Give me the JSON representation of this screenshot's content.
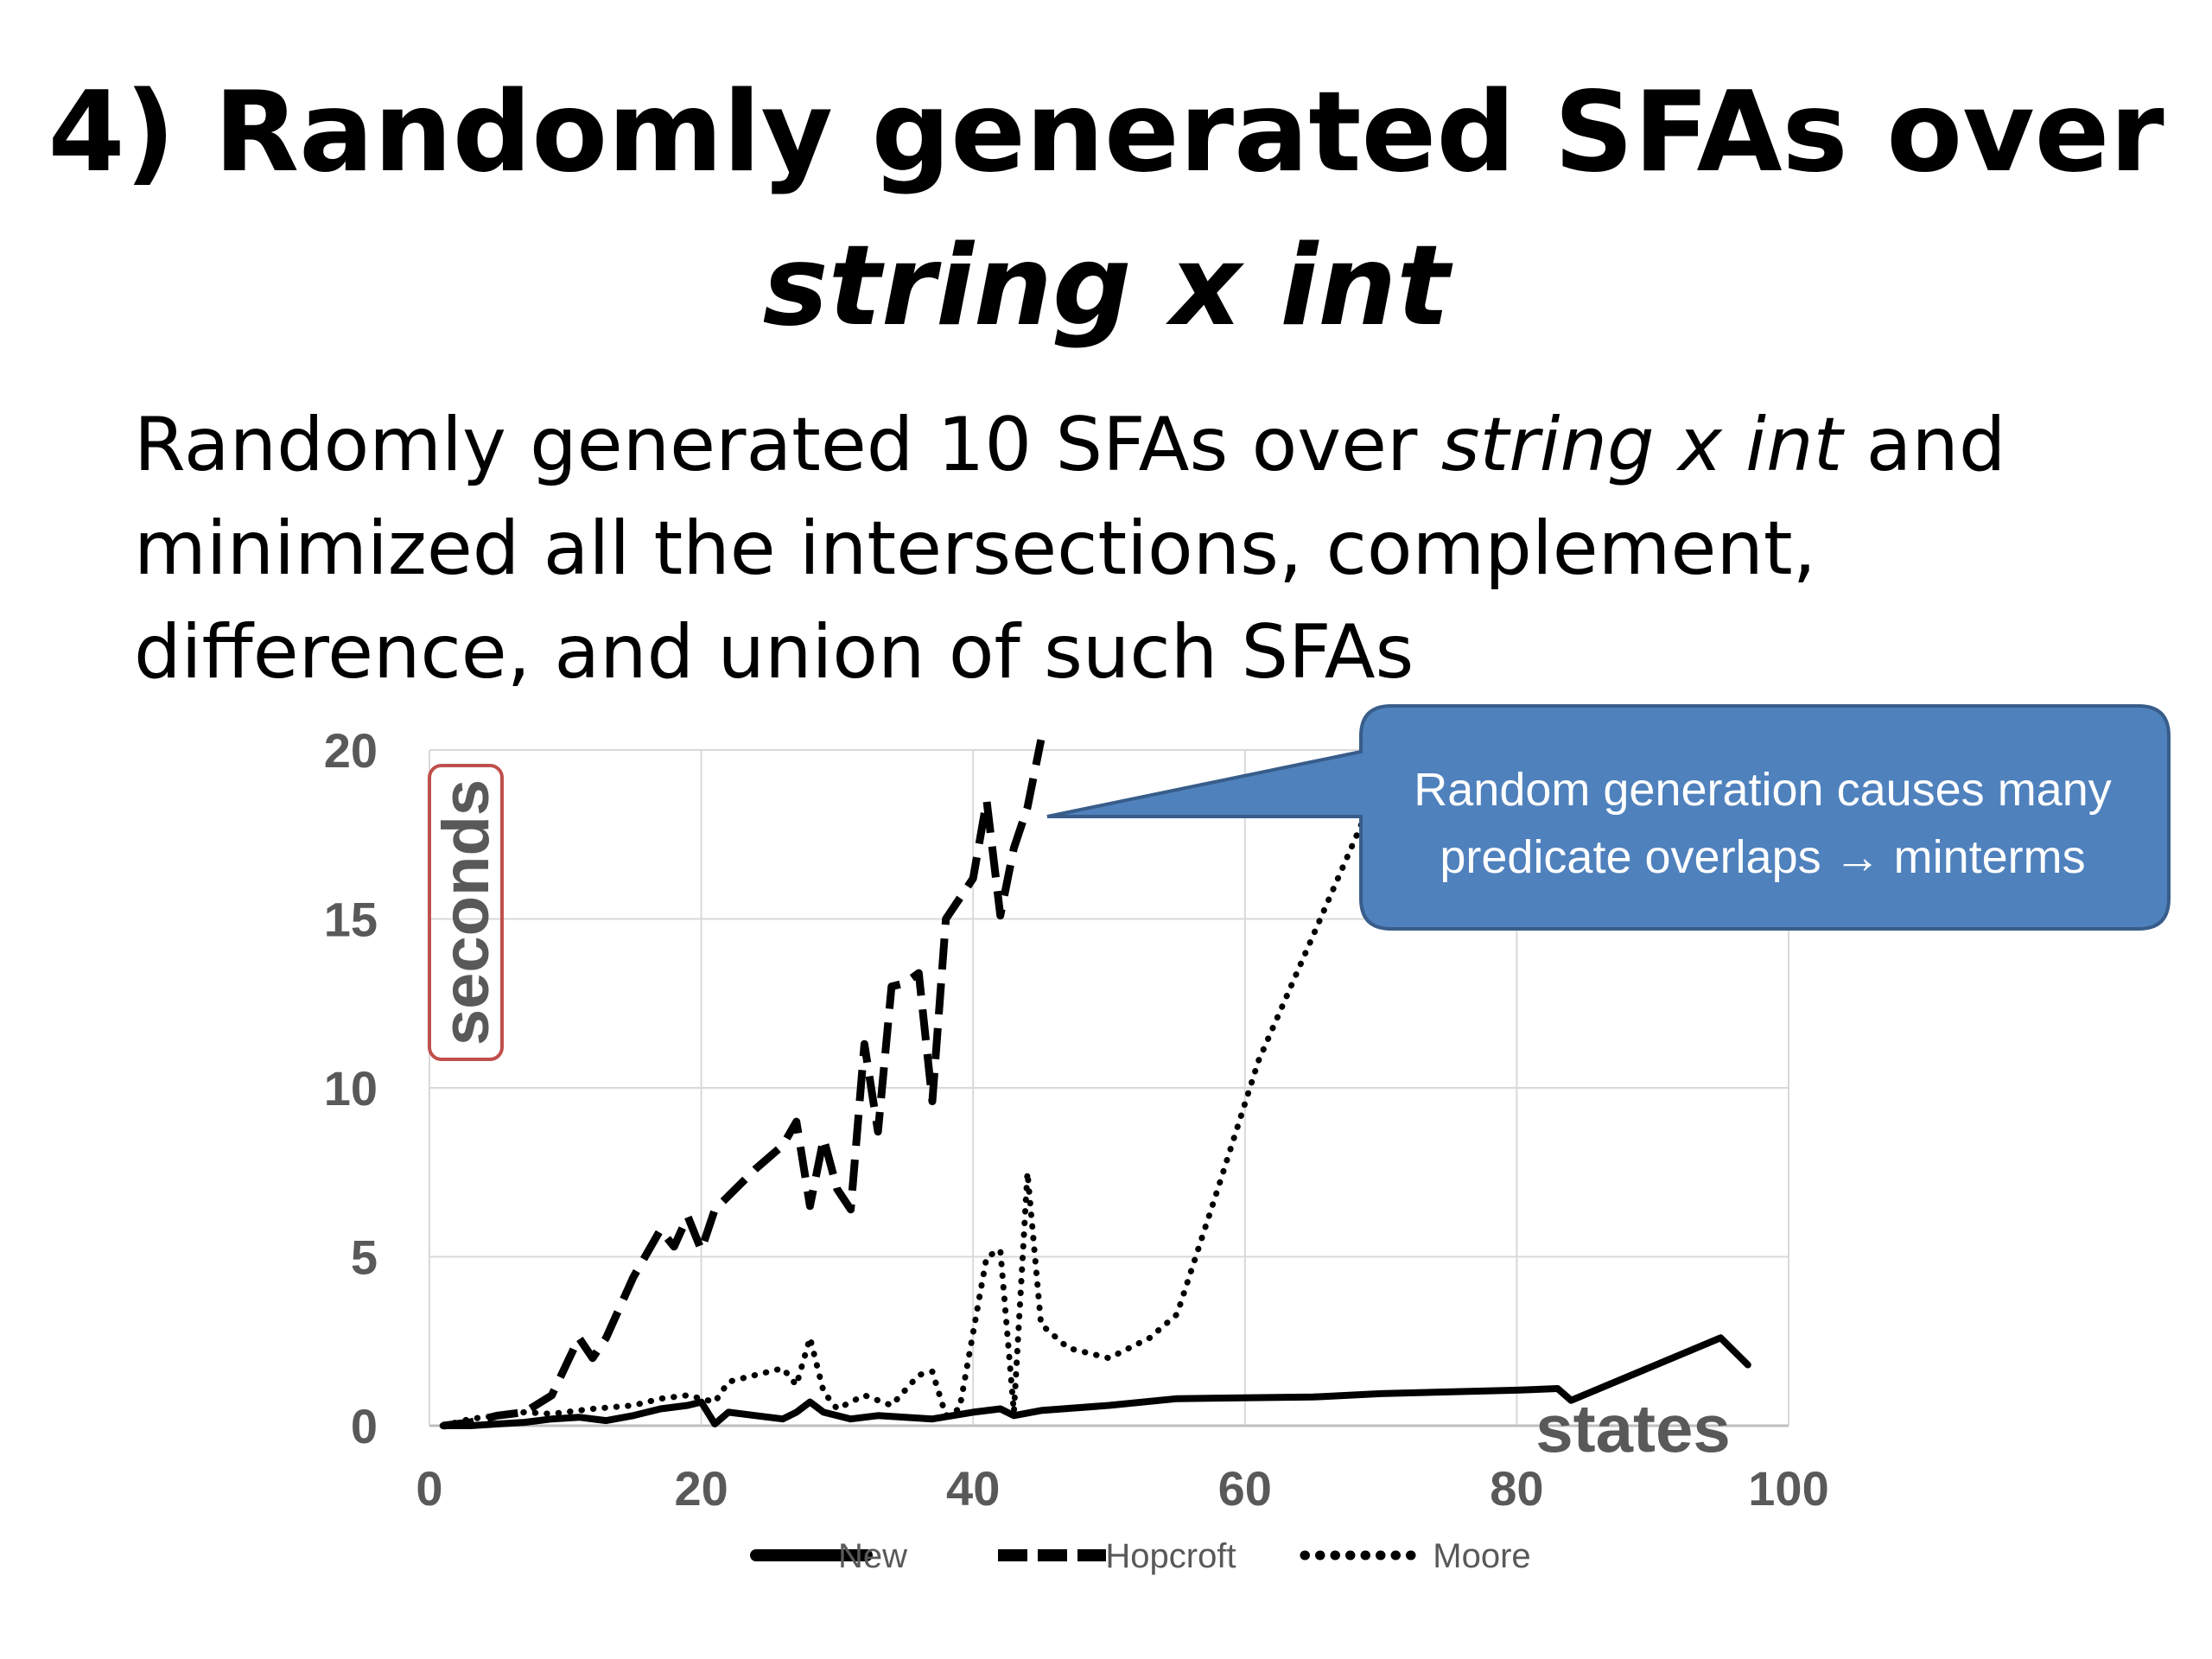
{
  "slide": {
    "title_line1": "4) Randomly generated SFAs over",
    "title_line2": "string x int",
    "body_line1_a": "Randomly generated 10 SFAs over ",
    "body_line1_b": "string x int",
    "body_line1_c": " and",
    "body_line2": "minimized all the intersections, complement,",
    "body_line3": "difference, and union of such SFAs",
    "callout_line1": "Random generation causes many",
    "callout_line2": "predicate overlaps → minterms"
  },
  "colors": {
    "callout_fill": "#4f81bd",
    "callout_stroke": "#385d8a",
    "ylabel_box": "#c0504d",
    "axis_text": "#595959",
    "grid": "#d9d9d9",
    "series": "#000000"
  },
  "chart_data": {
    "type": "line",
    "xlabel": "states",
    "ylabel": "seconds",
    "xlim": [
      0,
      100
    ],
    "ylim": [
      0,
      20
    ],
    "xticks": [
      0,
      20,
      40,
      60,
      80,
      100
    ],
    "yticks": [
      0,
      5,
      10,
      15,
      20
    ],
    "grid": true,
    "legend_position": "bottom",
    "series": [
      {
        "name": "New",
        "style": "solid",
        "points": [
          [
            1,
            0
          ],
          [
            3,
            0
          ],
          [
            5,
            0.05
          ],
          [
            7,
            0.1
          ],
          [
            9,
            0.2
          ],
          [
            11,
            0.25
          ],
          [
            13,
            0.15
          ],
          [
            15,
            0.3
          ],
          [
            17,
            0.5
          ],
          [
            19,
            0.6
          ],
          [
            20,
            0.7
          ],
          [
            21,
            0.05
          ],
          [
            22,
            0.4
          ],
          [
            24,
            0.3
          ],
          [
            26,
            0.2
          ],
          [
            27,
            0.4
          ],
          [
            28,
            0.7
          ],
          [
            29,
            0.4
          ],
          [
            31,
            0.2
          ],
          [
            33,
            0.3
          ],
          [
            35,
            0.25
          ],
          [
            37,
            0.2
          ],
          [
            40,
            0.4
          ],
          [
            42,
            0.5
          ],
          [
            43,
            0.3
          ],
          [
            45,
            0.45
          ],
          [
            50,
            0.6
          ],
          [
            55,
            0.8
          ],
          [
            65,
            0.85
          ],
          [
            70,
            0.95
          ],
          [
            80,
            1.05
          ],
          [
            83,
            1.1
          ],
          [
            84,
            0.75
          ],
          [
            95,
            2.6
          ],
          [
            97,
            1.8
          ]
        ]
      },
      {
        "name": "Hopcroft",
        "style": "dashed",
        "points": [
          [
            1,
            0
          ],
          [
            3,
            0.1
          ],
          [
            5,
            0.3
          ],
          [
            7,
            0.4
          ],
          [
            9,
            0.9
          ],
          [
            11,
            2.6
          ],
          [
            12,
            2.0
          ],
          [
            13,
            2.6
          ],
          [
            15,
            4.4
          ],
          [
            17,
            5.8
          ],
          [
            18,
            5.3
          ],
          [
            19,
            6.2
          ],
          [
            20,
            5.2
          ],
          [
            21,
            6.4
          ],
          [
            22,
            6.8
          ],
          [
            24,
            7.6
          ],
          [
            26,
            8.3
          ],
          [
            27,
            9.0
          ],
          [
            28,
            6.5
          ],
          [
            29,
            8.5
          ],
          [
            30,
            7.0
          ],
          [
            31,
            6.4
          ],
          [
            32,
            11.3
          ],
          [
            33,
            8.7
          ],
          [
            34,
            13.0
          ],
          [
            35,
            13.1
          ],
          [
            36,
            13.4
          ],
          [
            37,
            9.6
          ],
          [
            38,
            15.0
          ],
          [
            40,
            16.2
          ],
          [
            41,
            18.5
          ],
          [
            42,
            15.1
          ],
          [
            43,
            17.1
          ],
          [
            44,
            18.3
          ],
          [
            45,
            20.3
          ]
        ]
      },
      {
        "name": "Moore",
        "style": "dotted",
        "points": [
          [
            1,
            0
          ],
          [
            3,
            0.2
          ],
          [
            5,
            0.3
          ],
          [
            7,
            0.4
          ],
          [
            9,
            0.35
          ],
          [
            12,
            0.5
          ],
          [
            15,
            0.6
          ],
          [
            17,
            0.8
          ],
          [
            19,
            0.9
          ],
          [
            21,
            0.7
          ],
          [
            22,
            1.3
          ],
          [
            24,
            1.5
          ],
          [
            26,
            1.7
          ],
          [
            27,
            1.2
          ],
          [
            28,
            2.6
          ],
          [
            29,
            1.0
          ],
          [
            30,
            0.5
          ],
          [
            32,
            0.9
          ],
          [
            34,
            0.6
          ],
          [
            36,
            1.5
          ],
          [
            37,
            1.6
          ],
          [
            38,
            0.3
          ],
          [
            39,
            0.5
          ],
          [
            41,
            5.0
          ],
          [
            42,
            5.2
          ],
          [
            43,
            0.4
          ],
          [
            44,
            7.5
          ],
          [
            45,
            3.0
          ],
          [
            47,
            2.3
          ],
          [
            50,
            2.0
          ],
          [
            53,
            2.6
          ],
          [
            55,
            3.3
          ],
          [
            58,
            7.0
          ],
          [
            61,
            10.8
          ],
          [
            65,
            14.5
          ],
          [
            69,
            18.2
          ],
          [
            71,
            19.5
          ]
        ]
      }
    ]
  }
}
